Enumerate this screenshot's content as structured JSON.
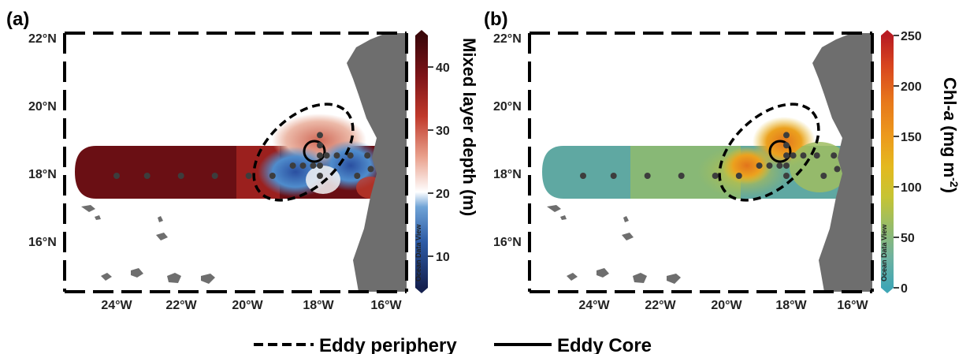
{
  "colors": {
    "land": "#6e6e6e",
    "station": "#3d3d3d",
    "mld_deep": "#6a0f14",
    "chl_background": "#5fa8a2"
  },
  "legend": {
    "periphery_label": "Eddy periphery",
    "core_label": "Eddy Core"
  },
  "panels": [
    {
      "label": "(a)",
      "colorbar_title": "Mixed layer depth (m)",
      "colorbar_ticks": [
        "40",
        "30",
        "20",
        "10"
      ],
      "colorbar_range": [
        5,
        45
      ],
      "watermark": "Ocean Data View",
      "x_ticks": [
        "24°W",
        "22°W",
        "20°W",
        "18°W",
        "16°W"
      ],
      "y_ticks": [
        "22°N",
        "20°N",
        "18°N",
        "16°N"
      ]
    },
    {
      "label": "(b)",
      "colorbar_title_main": "Chl-",
      "colorbar_title_italic": "a",
      "colorbar_title_unit": " (mg m",
      "colorbar_title_sup": "-2",
      "colorbar_title_end": ")",
      "colorbar_ticks": [
        "250",
        "200",
        "150",
        "100",
        "50",
        "0"
      ],
      "colorbar_range": [
        0,
        250
      ],
      "watermark": "Ocean Data View",
      "x_ticks": [
        "24°W",
        "22°W",
        "20°W",
        "18°W",
        "16°W"
      ],
      "y_ticks": [
        "22°N",
        "20°N",
        "18°N",
        "16°N"
      ]
    }
  ],
  "stations": [
    {
      "lon": -24.0,
      "lat": 18.0
    },
    {
      "lon": -23.1,
      "lat": 18.0
    },
    {
      "lon": -22.1,
      "lat": 18.0
    },
    {
      "lon": -21.1,
      "lat": 18.0
    },
    {
      "lon": -20.1,
      "lat": 18.0
    },
    {
      "lon": -19.4,
      "lat": 18.0
    },
    {
      "lon": -18.8,
      "lat": 18.3
    },
    {
      "lon": -18.5,
      "lat": 18.3
    },
    {
      "lon": -18.2,
      "lat": 18.3
    },
    {
      "lon": -18.0,
      "lat": 18.3
    },
    {
      "lon": -18.0,
      "lat": 18.0
    },
    {
      "lon": -18.0,
      "lat": 18.6
    },
    {
      "lon": -18.0,
      "lat": 18.9
    },
    {
      "lon": -18.0,
      "lat": 19.2
    },
    {
      "lon": -17.8,
      "lat": 18.6
    },
    {
      "lon": -17.5,
      "lat": 18.6
    },
    {
      "lon": -17.1,
      "lat": 18.6
    },
    {
      "lon": -16.9,
      "lat": 18.0
    },
    {
      "lon": -16.6,
      "lat": 18.6
    },
    {
      "lon": -16.5,
      "lat": 18.2
    }
  ]
}
